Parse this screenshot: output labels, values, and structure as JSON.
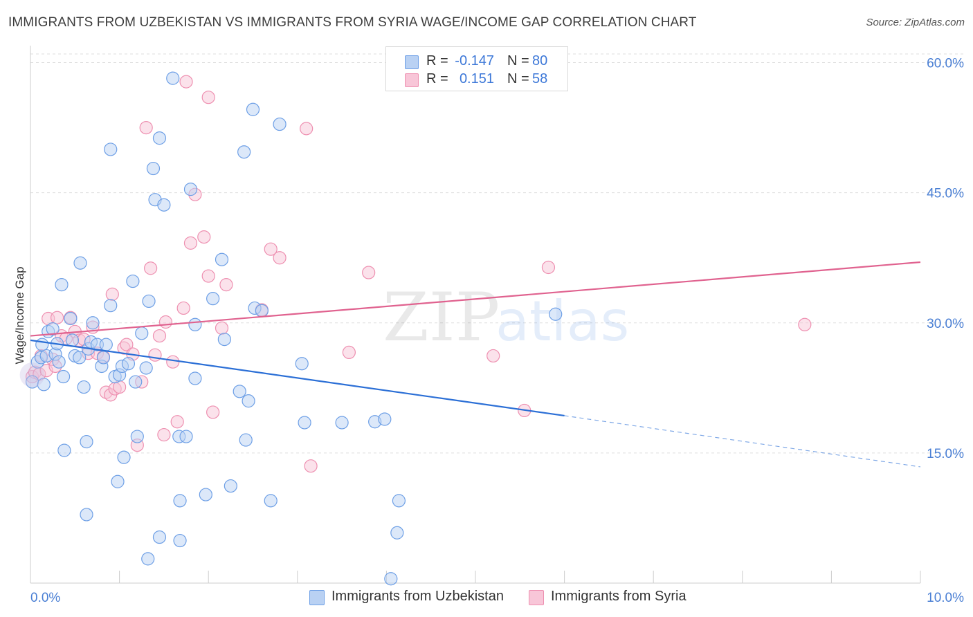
{
  "chart_data": {
    "type": "scatter",
    "title": "IMMIGRANTS FROM UZBEKISTAN VS IMMIGRANTS FROM SYRIA WAGE/INCOME GAP CORRELATION CHART",
    "source": "Source: ZipAtlas.com",
    "xlabel": "",
    "ylabel": "Wage/Income Gap",
    "xlim": [
      0,
      10
    ],
    "ylim": [
      0,
      61
    ],
    "x_tick_labels": [
      "0.0%",
      "10.0%"
    ],
    "y_ticks": [
      15,
      30,
      45,
      60
    ],
    "y_tick_labels": [
      "15.0%",
      "30.0%",
      "45.0%",
      "60.0%"
    ],
    "grid": true,
    "watermark": {
      "zip": "ZIP",
      "atlas": "atlas"
    },
    "legend": {
      "r_label": "R =",
      "n_label": "N =",
      "entries": [
        {
          "r": "-0.147",
          "n": "80"
        },
        {
          "r": "0.151",
          "n": "58"
        }
      ]
    },
    "series": [
      {
        "name": "Immigrants from Uzbekistan",
        "color": "#6d9fe6",
        "fill": "#b9d1f3",
        "trend": {
          "x0": 0,
          "y0": 28.0,
          "x1": 6.0,
          "y1": 19.3,
          "dash_x1": 10.0,
          "dash_y1": 13.4,
          "color": "#2b6fd6"
        },
        "points": [
          [
            0.02,
            23.2
          ],
          [
            0.08,
            25.5
          ],
          [
            0.12,
            26.0
          ],
          [
            0.15,
            22.9
          ],
          [
            0.13,
            27.5
          ],
          [
            0.2,
            29.0
          ],
          [
            0.18,
            26.2
          ],
          [
            0.25,
            29.3
          ],
          [
            0.28,
            26.4
          ],
          [
            0.3,
            27.6
          ],
          [
            0.32,
            25.5
          ],
          [
            0.37,
            23.8
          ],
          [
            0.35,
            34.4
          ],
          [
            0.45,
            30.5
          ],
          [
            0.47,
            28.0
          ],
          [
            0.5,
            26.2
          ],
          [
            0.55,
            26.0
          ],
          [
            0.6,
            22.6
          ],
          [
            0.56,
            36.9
          ],
          [
            0.65,
            27.0
          ],
          [
            0.68,
            27.8
          ],
          [
            0.7,
            30.0
          ],
          [
            0.75,
            27.5
          ],
          [
            0.8,
            25.0
          ],
          [
            0.82,
            26.0
          ],
          [
            0.85,
            27.5
          ],
          [
            0.9,
            50.0
          ],
          [
            0.9,
            32.0
          ],
          [
            0.95,
            23.8
          ],
          [
            1.0,
            24.0
          ],
          [
            1.03,
            25.0
          ],
          [
            1.05,
            14.5
          ],
          [
            1.1,
            25.3
          ],
          [
            1.15,
            34.8
          ],
          [
            1.18,
            23.2
          ],
          [
            1.25,
            28.8
          ],
          [
            1.3,
            24.8
          ],
          [
            1.33,
            32.5
          ],
          [
            1.38,
            47.8
          ],
          [
            1.4,
            44.2
          ],
          [
            1.45,
            51.3
          ],
          [
            1.5,
            43.6
          ],
          [
            1.6,
            58.2
          ],
          [
            1.67,
            16.9
          ],
          [
            1.75,
            16.9
          ],
          [
            1.8,
            45.4
          ],
          [
            1.85,
            29.8
          ],
          [
            1.85,
            23.6
          ],
          [
            1.97,
            10.2
          ],
          [
            2.05,
            32.8
          ],
          [
            2.15,
            37.3
          ],
          [
            2.18,
            28.1
          ],
          [
            2.25,
            11.2
          ],
          [
            2.35,
            22.1
          ],
          [
            2.4,
            49.7
          ],
          [
            2.42,
            16.5
          ],
          [
            2.45,
            21.0
          ],
          [
            2.52,
            31.7
          ],
          [
            2.5,
            54.6
          ],
          [
            2.6,
            31.4
          ],
          [
            2.7,
            9.5
          ],
          [
            2.8,
            52.9
          ],
          [
            3.05,
            25.3
          ],
          [
            3.08,
            18.5
          ],
          [
            3.5,
            18.5
          ],
          [
            3.87,
            18.6
          ],
          [
            3.98,
            18.9
          ],
          [
            4.14,
            9.5
          ],
          [
            4.12,
            5.8
          ],
          [
            4.05,
            0.5
          ],
          [
            0.63,
            16.3
          ],
          [
            0.63,
            7.9
          ],
          [
            0.98,
            11.7
          ],
          [
            1.45,
            5.3
          ],
          [
            1.68,
            9.5
          ],
          [
            1.68,
            4.9
          ],
          [
            1.32,
            2.8
          ],
          [
            0.38,
            15.3
          ],
          [
            1.2,
            16.9
          ],
          [
            5.9,
            31.0
          ]
        ]
      },
      {
        "name": "Immigrants from Syria",
        "color": "#ee8fb0",
        "fill": "#f8c6d8",
        "trend": {
          "x0": 0,
          "y0": 28.5,
          "x1": 10.0,
          "y1": 37.0,
          "color": "#e0628f"
        },
        "points": [
          [
            0.02,
            23.8
          ],
          [
            0.05,
            24.3
          ],
          [
            0.1,
            24.1
          ],
          [
            0.12,
            26.2
          ],
          [
            0.18,
            24.5
          ],
          [
            0.2,
            30.5
          ],
          [
            0.25,
            25.8
          ],
          [
            0.28,
            25.0
          ],
          [
            0.3,
            30.6
          ],
          [
            0.35,
            28.5
          ],
          [
            0.4,
            28.2
          ],
          [
            0.45,
            30.6
          ],
          [
            0.5,
            29.0
          ],
          [
            0.55,
            28.0
          ],
          [
            0.6,
            28.1
          ],
          [
            0.65,
            26.5
          ],
          [
            0.7,
            29.5
          ],
          [
            0.75,
            26.5
          ],
          [
            0.82,
            26.1
          ],
          [
            0.85,
            22.0
          ],
          [
            0.9,
            21.7
          ],
          [
            0.92,
            33.3
          ],
          [
            0.95,
            22.4
          ],
          [
            1.0,
            22.6
          ],
          [
            1.05,
            27.1
          ],
          [
            1.08,
            27.5
          ],
          [
            1.15,
            26.4
          ],
          [
            1.2,
            15.9
          ],
          [
            1.25,
            23.2
          ],
          [
            1.3,
            52.5
          ],
          [
            1.35,
            36.3
          ],
          [
            1.4,
            26.3
          ],
          [
            1.45,
            28.5
          ],
          [
            1.5,
            17.1
          ],
          [
            1.52,
            30.1
          ],
          [
            1.6,
            25.5
          ],
          [
            1.65,
            18.6
          ],
          [
            1.72,
            31.7
          ],
          [
            1.75,
            57.8
          ],
          [
            1.8,
            39.2
          ],
          [
            1.85,
            44.8
          ],
          [
            1.95,
            39.9
          ],
          [
            2.0,
            35.4
          ],
          [
            2.0,
            56.0
          ],
          [
            2.05,
            19.7
          ],
          [
            2.15,
            29.4
          ],
          [
            2.2,
            34.4
          ],
          [
            2.6,
            31.5
          ],
          [
            2.7,
            38.5
          ],
          [
            2.8,
            37.5
          ],
          [
            3.1,
            52.4
          ],
          [
            3.15,
            13.5
          ],
          [
            3.58,
            26.6
          ],
          [
            3.8,
            35.8
          ],
          [
            5.2,
            26.2
          ],
          [
            5.55,
            19.9
          ],
          [
            5.82,
            36.4
          ],
          [
            8.7,
            29.8
          ]
        ]
      }
    ]
  },
  "bottom_legend": [
    "Immigrants from Uzbekistan",
    "Immigrants from Syria"
  ]
}
